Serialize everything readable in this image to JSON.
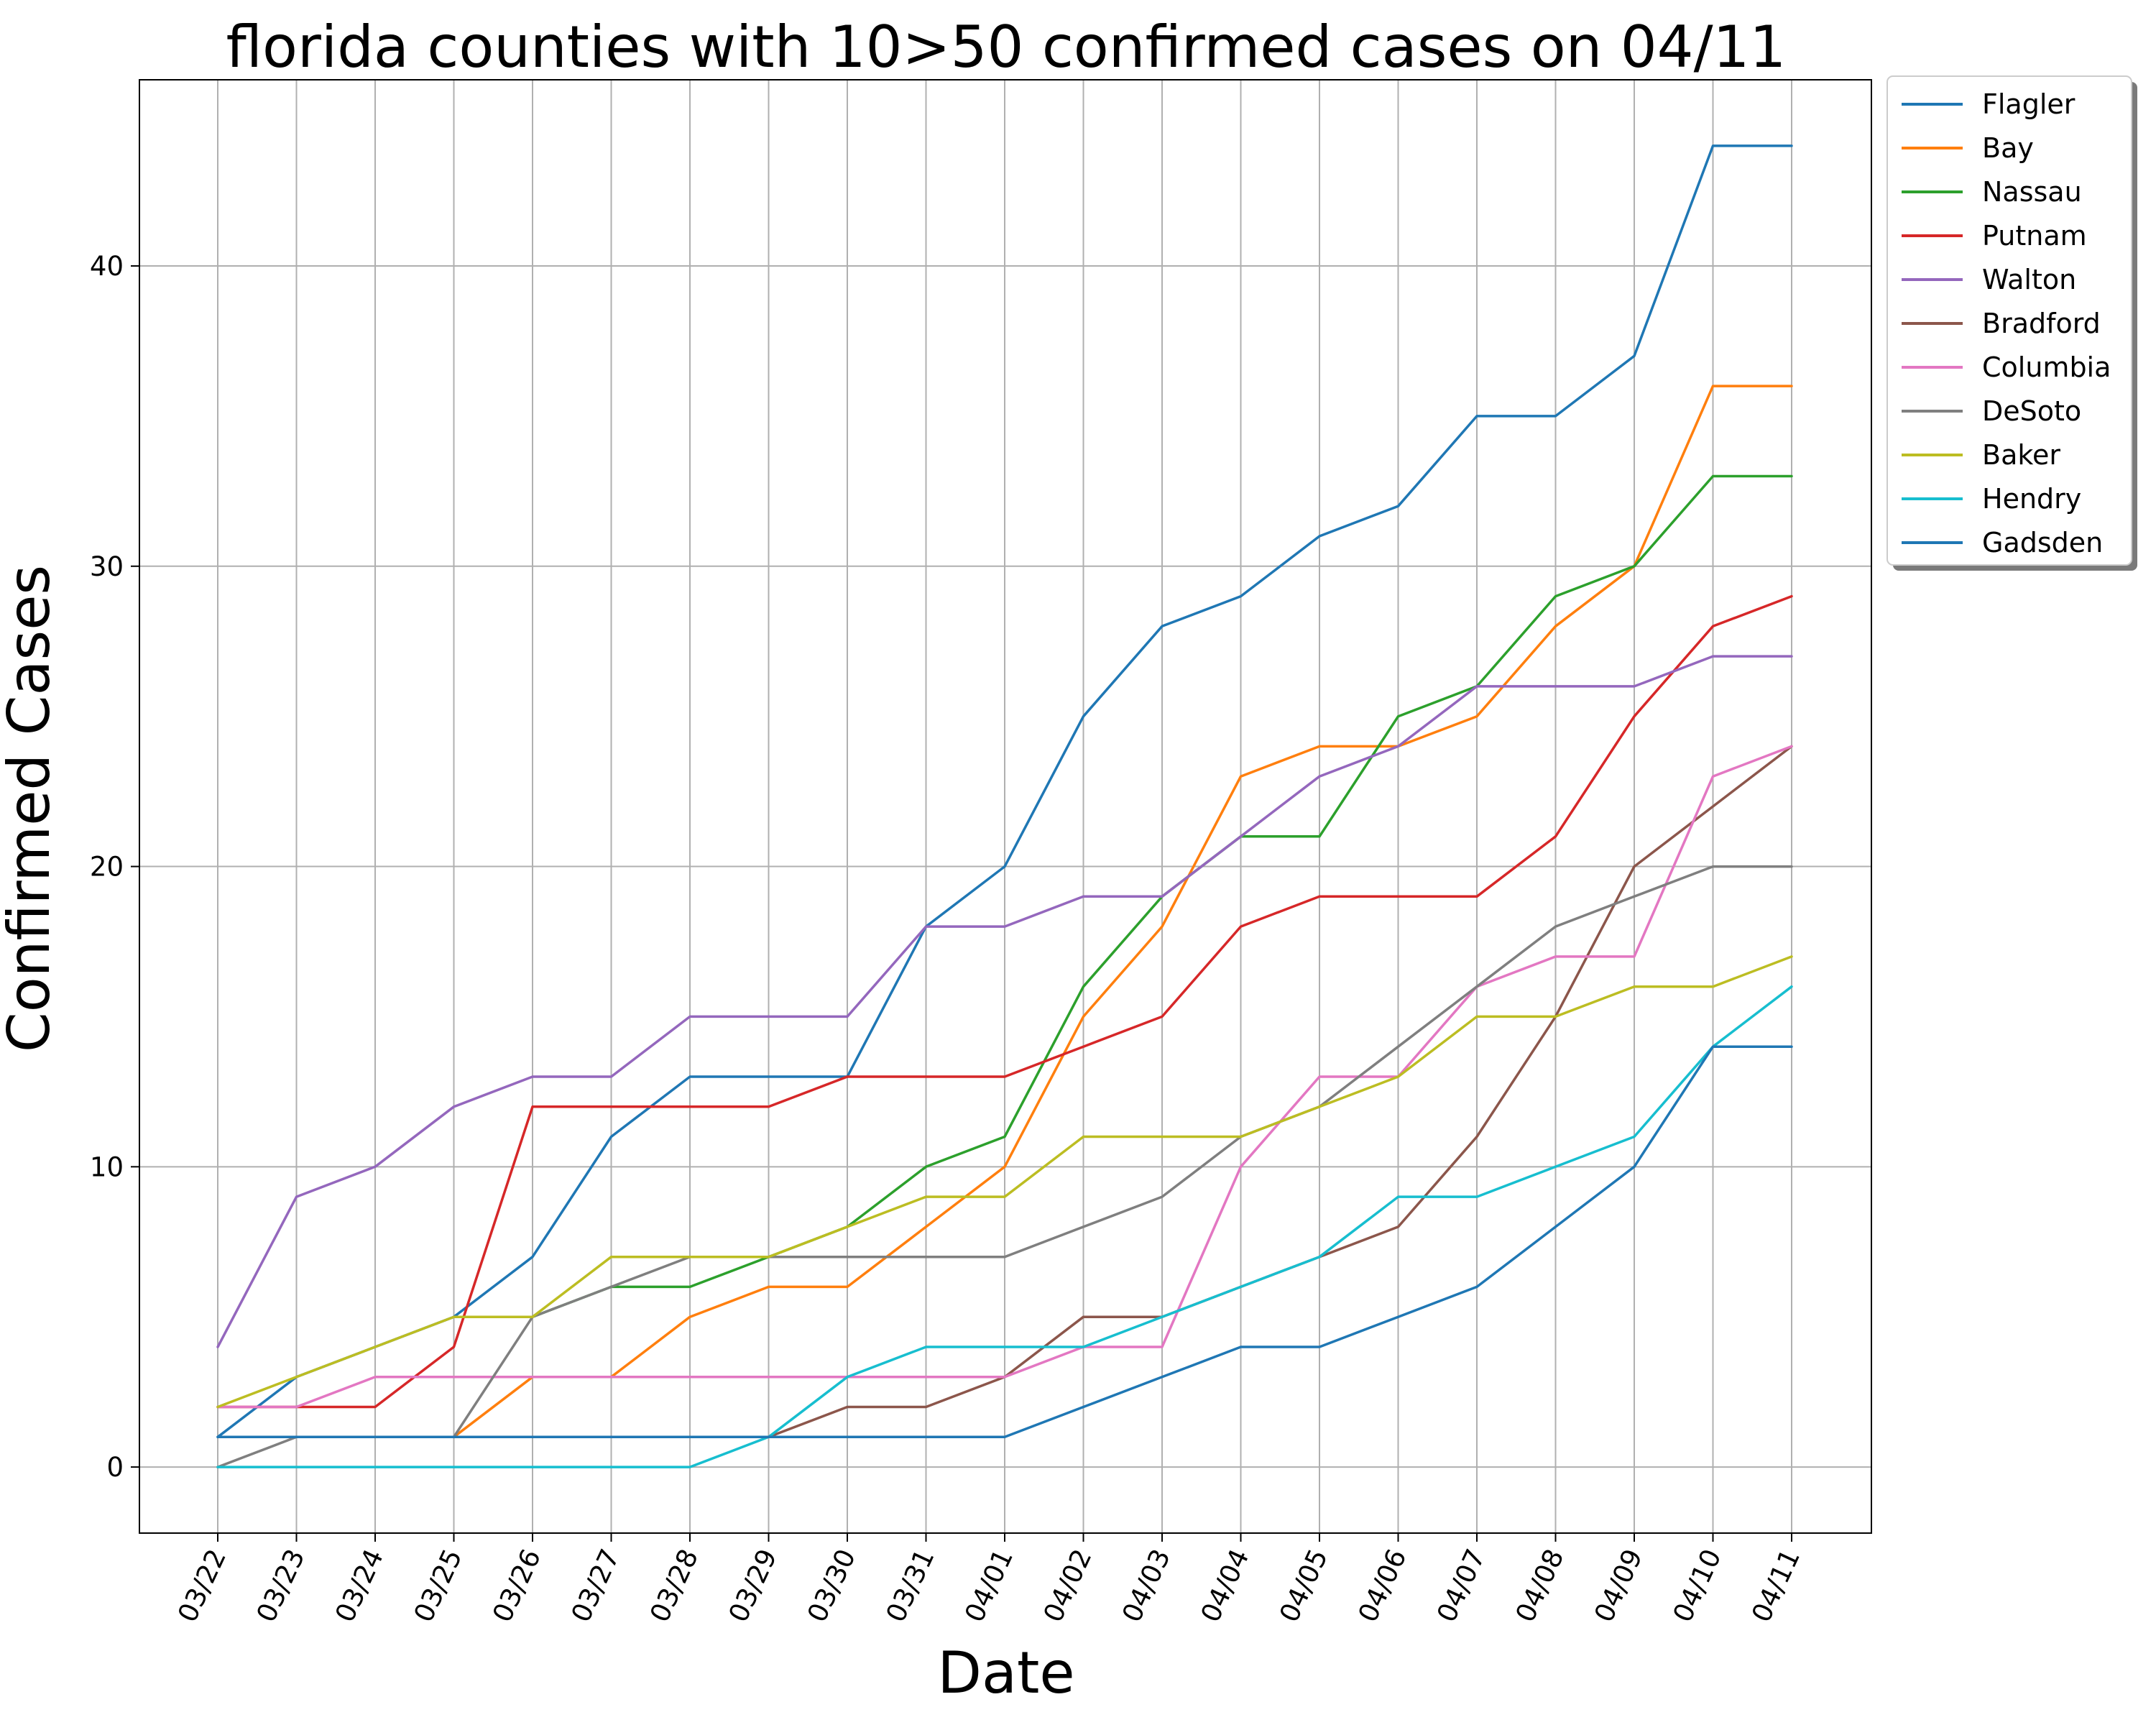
{
  "chart_data": {
    "type": "line",
    "title": "florida counties with 10>50 confirmed cases on 04/11",
    "xlabel": "Date",
    "ylabel": "Confirmed Cases",
    "x": [
      "03/22",
      "03/23",
      "03/24",
      "03/25",
      "03/26",
      "03/27",
      "03/28",
      "03/29",
      "03/30",
      "03/31",
      "04/01",
      "04/02",
      "04/03",
      "04/04",
      "04/05",
      "04/06",
      "04/07",
      "04/08",
      "04/09",
      "04/10",
      "04/11"
    ],
    "yticks": [
      0,
      10,
      20,
      30,
      40
    ],
    "ylim": [
      -2.2,
      46.2
    ],
    "grid": true,
    "legend": "outside-upper-right",
    "series": [
      {
        "name": "Flagler",
        "color": "#1f77b4",
        "values": [
          1,
          3,
          4,
          5,
          7,
          11,
          13,
          13,
          13,
          18,
          20,
          25,
          28,
          29,
          31,
          32,
          35,
          35,
          37,
          44,
          44
        ]
      },
      {
        "name": "Bay",
        "color": "#ff7f0e",
        "values": [
          null,
          null,
          null,
          1,
          3,
          3,
          5,
          6,
          6,
          8,
          10,
          15,
          18,
          23,
          24,
          24,
          25,
          28,
          30,
          36,
          36
        ]
      },
      {
        "name": "Nassau",
        "color": "#2ca02c",
        "values": [
          null,
          null,
          null,
          null,
          5,
          6,
          6,
          7,
          8,
          10,
          11,
          16,
          19,
          21,
          21,
          25,
          26,
          29,
          30,
          33,
          33
        ]
      },
      {
        "name": "Putnam",
        "color": "#d62728",
        "values": [
          2,
          2,
          2,
          4,
          12,
          12,
          12,
          12,
          13,
          13,
          13,
          14,
          15,
          18,
          19,
          19,
          19,
          21,
          25,
          28,
          29
        ]
      },
      {
        "name": "Walton",
        "color": "#9467bd",
        "values": [
          4,
          9,
          10,
          12,
          13,
          13,
          15,
          15,
          15,
          18,
          18,
          19,
          19,
          21,
          23,
          24,
          26,
          26,
          26,
          27,
          27
        ]
      },
      {
        "name": "Bradford",
        "color": "#8c564b",
        "values": [
          null,
          null,
          null,
          null,
          null,
          null,
          null,
          1,
          2,
          2,
          3,
          5,
          5,
          6,
          7,
          8,
          11,
          15,
          20,
          22,
          24
        ]
      },
      {
        "name": "Columbia",
        "color": "#e377c2",
        "values": [
          2,
          2,
          3,
          3,
          3,
          3,
          3,
          3,
          3,
          3,
          3,
          4,
          4,
          10,
          13,
          13,
          16,
          17,
          17,
          23,
          24
        ]
      },
      {
        "name": "DeSoto",
        "color": "#7f7f7f",
        "values": [
          0,
          1,
          1,
          1,
          5,
          6,
          7,
          7,
          7,
          7,
          7,
          8,
          9,
          11,
          12,
          14,
          16,
          18,
          19,
          20,
          20
        ]
      },
      {
        "name": "Baker",
        "color": "#bcbd22",
        "values": [
          2,
          3,
          4,
          5,
          5,
          7,
          7,
          7,
          8,
          9,
          9,
          11,
          11,
          11,
          12,
          13,
          15,
          15,
          16,
          16,
          17
        ]
      },
      {
        "name": "Hendry",
        "color": "#17becf",
        "values": [
          0,
          0,
          0,
          0,
          0,
          0,
          0,
          1,
          3,
          4,
          4,
          4,
          5,
          6,
          7,
          9,
          9,
          10,
          11,
          14,
          16
        ]
      },
      {
        "name": "Gadsden",
        "color": "#1f77b4",
        "values": [
          1,
          1,
          1,
          1,
          1,
          1,
          1,
          1,
          1,
          1,
          1,
          2,
          3,
          4,
          4,
          5,
          6,
          8,
          10,
          14,
          14
        ]
      }
    ]
  }
}
